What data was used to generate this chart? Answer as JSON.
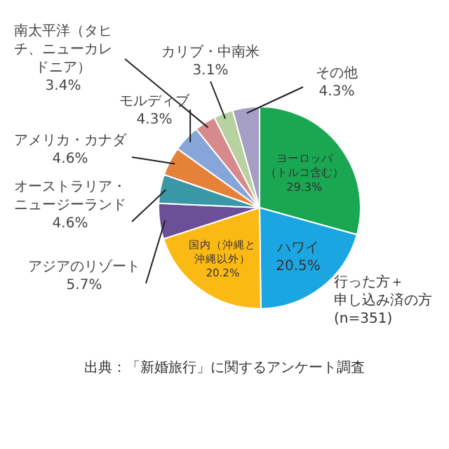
{
  "chart_data": {
    "type": "pie",
    "categories": [
      "ヨーロッパ（トルコ含む）",
      "ハワイ",
      "国内（沖縄と沖縄以外）",
      "アジアのリゾート",
      "オーストラリア・ニュージーランド",
      "アメリカ・カナダ",
      "モルディブ",
      "南太平洋（タヒチ、ニューカレドニア）",
      "カリブ・中南米",
      "その他"
    ],
    "values": [
      29.3,
      20.5,
      20.2,
      5.7,
      4.6,
      4.6,
      4.3,
      3.4,
      3.1,
      4.3
    ],
    "value_labels": [
      "29.3%",
      "20.5%",
      "20.2%",
      "5.7%",
      "4.6%",
      "4.6%",
      "4.3%",
      "3.4%",
      "3.1%",
      "4.3%"
    ],
    "colors": [
      "#1aa752",
      "#1ba6e2",
      "#fbb914",
      "#6b4f97",
      "#3a97a6",
      "#e5823a",
      "#86a6da",
      "#d68a8c",
      "#b7d19f",
      "#a59fc6"
    ],
    "annotations": [
      "行った方＋申し込み済の方(n=351)",
      "出典：「新婚旅行」に関するアンケート調査"
    ],
    "legend": false
  }
}
